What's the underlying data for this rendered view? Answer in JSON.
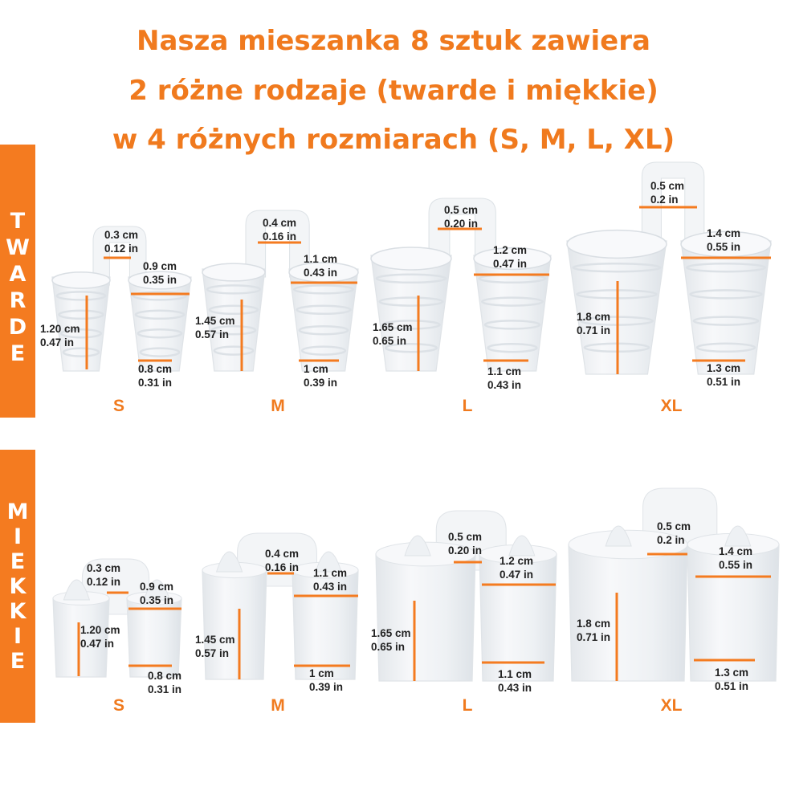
{
  "title_lines": [
    "Nasza mieszanka 8 sztuk zawiera",
    "2 różne rodzaje (twarde i miękkie)",
    "w 4 różnych rozmiarach (S, M, L, XL)"
  ],
  "colors": {
    "accent": "#f07a1e",
    "bar": "#f47b20",
    "product": "#eef0f2"
  },
  "sections": [
    {
      "label": "TWARDE",
      "items": [
        {
          "size": "S",
          "bridge": [
            "0.3 cm",
            "0.12 in"
          ],
          "top": [
            "0.9 cm",
            "0.35 in"
          ],
          "height": [
            "1.20 cm",
            "0.47 in"
          ],
          "bottom": [
            "0.8 cm",
            "0.31 in"
          ]
        },
        {
          "size": "M",
          "bridge": [
            "0.4 cm",
            "0.16 in"
          ],
          "top": [
            "1.1 cm",
            "0.43 in"
          ],
          "height": [
            "1.45 cm",
            "0.57 in"
          ],
          "bottom": [
            "1 cm",
            "0.39 in"
          ]
        },
        {
          "size": "L",
          "bridge": [
            "0.5 cm",
            "0.20 in"
          ],
          "top": [
            "1.2 cm",
            "0.47 in"
          ],
          "height": [
            "1.65 cm",
            "0.65 in"
          ],
          "bottom": [
            "1.1 cm",
            "0.43 in"
          ]
        },
        {
          "size": "XL",
          "bridge": [
            "0.5 cm",
            "0.2 in"
          ],
          "top": [
            "1.4 cm",
            "0.55 in"
          ],
          "height": [
            "1.8 cm",
            "0.71 in"
          ],
          "bottom": [
            "1.3 cm",
            "0.51 in"
          ]
        }
      ]
    },
    {
      "label": "MIEKKIE",
      "items": [
        {
          "size": "S",
          "bridge": [
            "0.3 cm",
            "0.12 in"
          ],
          "top": [
            "0.9 cm",
            "0.35 in"
          ],
          "height": [
            "1.20 cm",
            "0.47 in"
          ],
          "bottom": [
            "0.8 cm",
            "0.31 in"
          ]
        },
        {
          "size": "M",
          "bridge": [
            "0.4 cm",
            "0.16 in"
          ],
          "top": [
            "1.1 cm",
            "0.43 in"
          ],
          "height": [
            "1.45 cm",
            "0.57 in"
          ],
          "bottom": [
            "1 cm",
            "0.39 in"
          ]
        },
        {
          "size": "L",
          "bridge": [
            "0.5 cm",
            "0.20 in"
          ],
          "top": [
            "1.2 cm",
            "0.47 in"
          ],
          "height": [
            "1.65 cm",
            "0.65 in"
          ],
          "bottom": [
            "1.1 cm",
            "0.43 in"
          ]
        },
        {
          "size": "XL",
          "bridge": [
            "0.5 cm",
            "0.2 in"
          ],
          "top": [
            "1.4 cm",
            "0.55 in"
          ],
          "height": [
            "1.8 cm",
            "0.71 in"
          ],
          "bottom": [
            "1.3 cm",
            "0.51 in"
          ]
        }
      ]
    }
  ]
}
